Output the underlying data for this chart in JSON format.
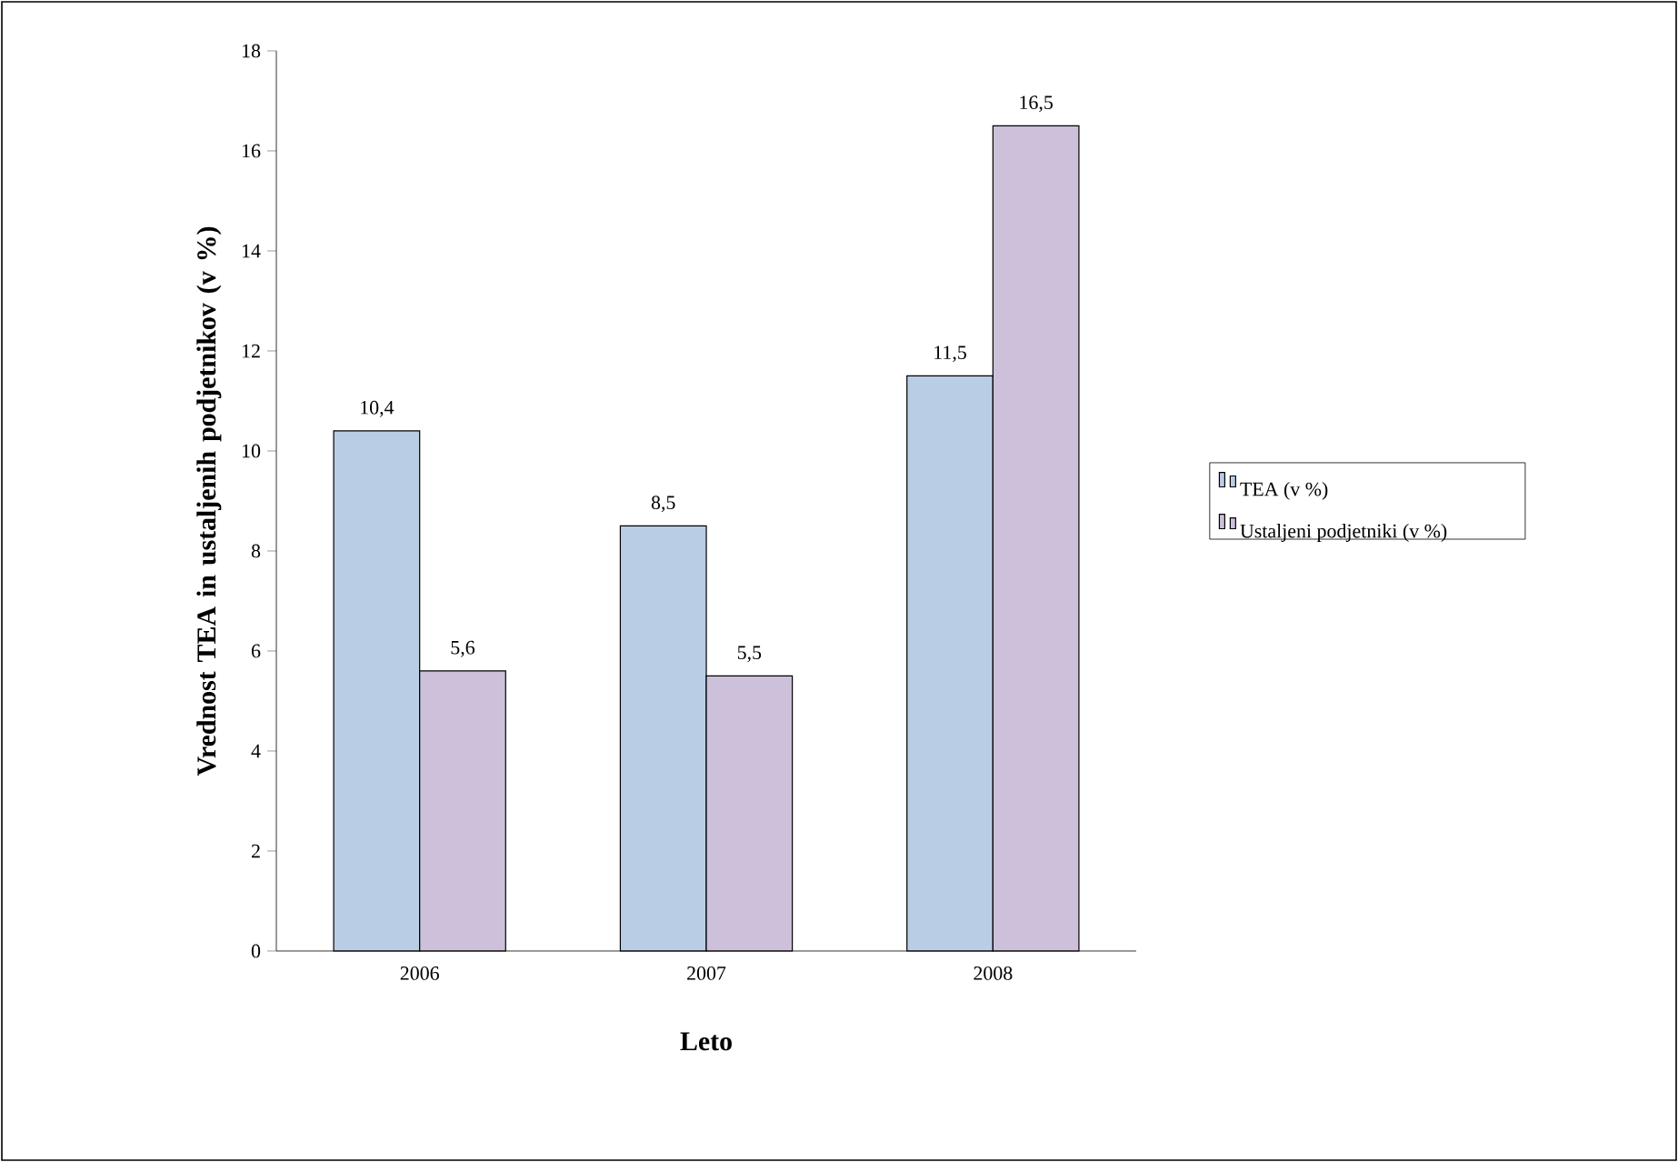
{
  "chart_data": {
    "type": "bar",
    "xlabel": "Leto",
    "ylabel": "Vrednost TEA in ustaljenih podjetnikov (v %)",
    "categories": [
      "2006",
      "2007",
      "2008"
    ],
    "series": [
      {
        "name": "TEA (v %)",
        "color": "#b9cde5",
        "values": [
          10.4,
          8.5,
          11.5
        ],
        "value_labels": [
          "10,4",
          "8,5",
          "11,5"
        ]
      },
      {
        "name": "Ustaljeni podjetniki (v %)",
        "color": "#ccc0da",
        "values": [
          5.6,
          5.5,
          16.5
        ],
        "value_labels": [
          "5,6",
          "5,5",
          "16,5"
        ]
      }
    ],
    "ylim": [
      0,
      18
    ],
    "yticks": [
      0,
      2,
      4,
      6,
      8,
      10,
      12,
      14,
      16,
      18
    ],
    "legend": "right"
  }
}
